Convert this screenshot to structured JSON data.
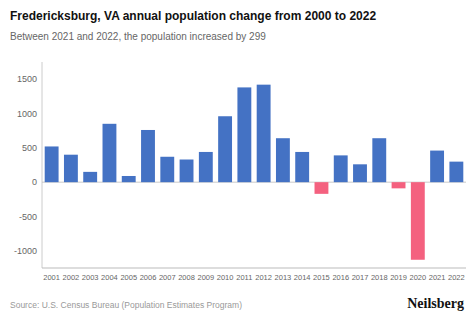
{
  "chart_data": {
    "type": "bar",
    "title": "Fredericksburg, VA annual population change from 2000 to 2022",
    "subtitle": "Between 2021 and 2022, the population increased by 299",
    "annotations": [
      "Source: U.S. Census Bureau (Population Estimates Program)",
      "Neilsberg"
    ],
    "categories": [
      "2001",
      "2002",
      "2003",
      "2004",
      "2005",
      "2006",
      "2007",
      "2008",
      "2009",
      "2010",
      "2011",
      "2012",
      "2013",
      "2014",
      "2015",
      "2016",
      "2017",
      "2018",
      "2019",
      "2020",
      "2021",
      "2022"
    ],
    "values": [
      520,
      400,
      150,
      850,
      90,
      760,
      370,
      330,
      440,
      960,
      1380,
      1420,
      640,
      440,
      -170,
      390,
      260,
      640,
      -90,
      -1130,
      460,
      299
    ],
    "colors": [
      "#4472C4",
      "#4472C4",
      "#4472C4",
      "#4472C4",
      "#4472C4",
      "#4472C4",
      "#4472C4",
      "#4472C4",
      "#4472C4",
      "#4472C4",
      "#4472C4",
      "#4472C4",
      "#4472C4",
      "#4472C4",
      "#F4617F",
      "#4472C4",
      "#4472C4",
      "#4472C4",
      "#F4617F",
      "#F4617F",
      "#4472C4",
      "#4472C4"
    ],
    "ylim": [
      -1250,
      1750
    ],
    "yticks": [
      -1000,
      -500,
      0,
      500,
      1000,
      1500
    ],
    "grid": false
  }
}
